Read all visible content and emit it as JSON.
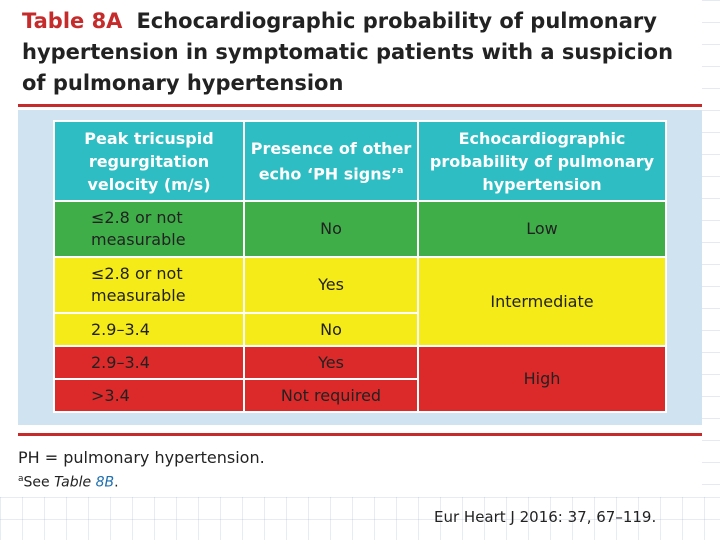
{
  "title": {
    "label": "Table 8A",
    "text": "Echocardiographic probability of pulmonary hypertension in symptomatic patients with a suspicion of pulmonary hypertension"
  },
  "table": {
    "headers": [
      "Peak tricuspid regurgitation velocity (m/s)",
      "Presence of other echo ‘PH signs’",
      "Echocardiographic probability of pulmonary hypertension"
    ],
    "header_footnote_mark": "a",
    "rows": [
      {
        "velocity": "≤2.8 or not measurable",
        "signs": "No",
        "probability": "Low"
      },
      {
        "velocity": "≤2.8 or not measurable",
        "signs": "Yes",
        "probability": "Intermediate"
      },
      {
        "velocity": "2.9–3.4",
        "signs": "No"
      },
      {
        "velocity": "2.9–3.4",
        "signs": "Yes",
        "probability": "High"
      },
      {
        "velocity": ">3.4",
        "signs": "Not required"
      }
    ],
    "colors": {
      "header": "#2ebdc3",
      "low": "#3fae49",
      "intermediate": "#f5eb18",
      "high": "#dc2a2b",
      "accent": "#c62b2b"
    }
  },
  "footnotes": {
    "abbreviation": "PH = pulmonary hypertension.",
    "see_mark": "a",
    "see_prefix": "See ",
    "see_ref_italic": "Table",
    "see_ref_blue": "8B",
    "see_suffix": "."
  },
  "citation": "Eur Heart J 2016: 37, 67–119."
}
